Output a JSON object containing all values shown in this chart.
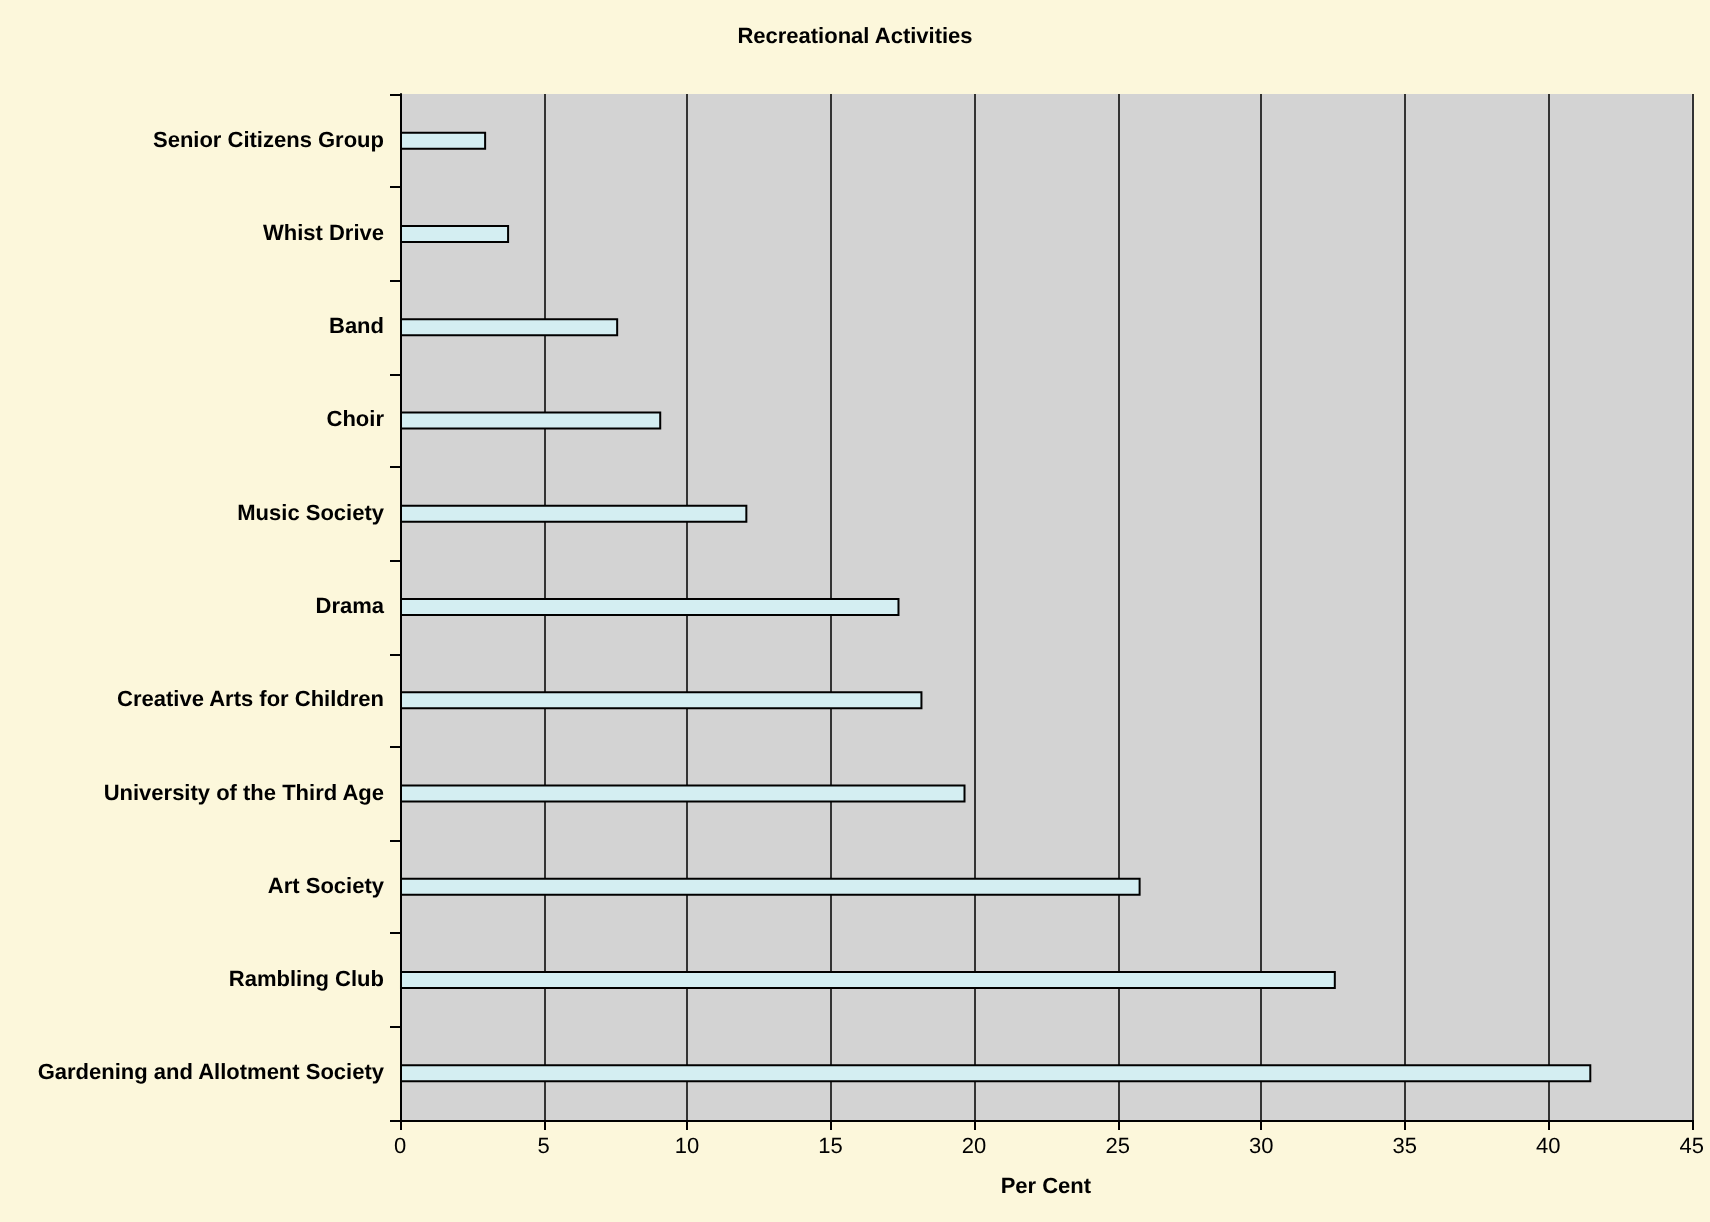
{
  "chart_data": {
    "type": "bar",
    "orientation": "horizontal",
    "title": "Recreational Activities",
    "xlabel": "Per Cent",
    "categories": [
      "Senior Citizens Group",
      "Whist Drive",
      "Band",
      "Choir",
      "Music Society",
      "Drama",
      "Creative Arts for Children",
      "University of the Third Age",
      "Art Society",
      "Rambling Club",
      "Gardening and Allotment Society"
    ],
    "values": [
      3.0,
      3.8,
      7.6,
      9.1,
      12.1,
      17.4,
      18.2,
      19.7,
      25.8,
      32.6,
      41.5
    ],
    "color": "#d4eef2",
    "xlim": [
      0,
      45
    ],
    "xticks": [
      0,
      5,
      10,
      15,
      20,
      25,
      30,
      35,
      40,
      45
    ],
    "grid": "x"
  }
}
